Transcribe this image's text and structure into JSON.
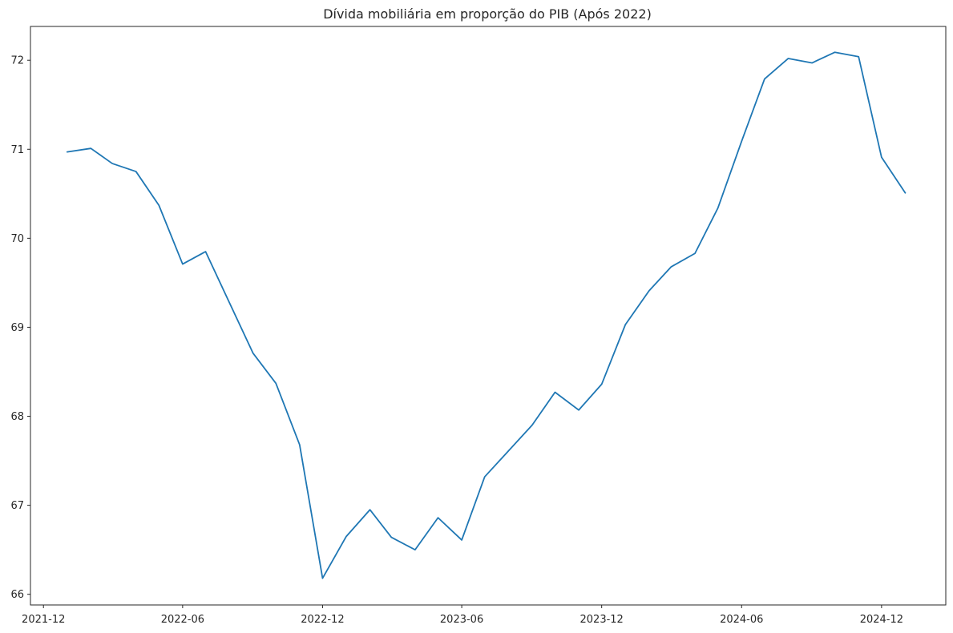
{
  "chart_data": {
    "type": "line",
    "title": "Dívida mobiliária em proporção do PIB (Após 2022)",
    "xlabel": "",
    "ylabel": "",
    "grid": false,
    "legend": "none",
    "x_range": [
      "2021-11-14",
      "2025-02-23"
    ],
    "ylim": [
      65.88,
      72.38
    ],
    "x_ticks": [
      {
        "value": "2021-12-01",
        "label": "2021-12"
      },
      {
        "value": "2022-06-01",
        "label": "2022-06"
      },
      {
        "value": "2022-12-01",
        "label": "2022-12"
      },
      {
        "value": "2023-06-01",
        "label": "2023-06"
      },
      {
        "value": "2023-12-01",
        "label": "2023-12"
      },
      {
        "value": "2024-06-01",
        "label": "2024-06"
      },
      {
        "value": "2024-12-01",
        "label": "2024-12"
      }
    ],
    "y_ticks": [
      66,
      67,
      68,
      69,
      70,
      71,
      72
    ],
    "colors": {
      "line": "#1f77b4",
      "axes": "#262626",
      "background": "#ffffff"
    },
    "series": [
      {
        "x": [
          "2022-01-01",
          "2022-02-01",
          "2022-03-01",
          "2022-04-01",
          "2022-05-01",
          "2022-06-01",
          "2022-07-01",
          "2022-08-01",
          "2022-09-01",
          "2022-10-01",
          "2022-11-01",
          "2022-12-01",
          "2023-01-01",
          "2023-02-01",
          "2023-03-01",
          "2023-04-01",
          "2023-05-01",
          "2023-06-01",
          "2023-07-01",
          "2023-08-01",
          "2023-09-01",
          "2023-10-01",
          "2023-11-01",
          "2023-12-01",
          "2024-01-01",
          "2024-02-01",
          "2024-03-01",
          "2024-04-01",
          "2024-05-01",
          "2024-06-01",
          "2024-07-01",
          "2024-08-01",
          "2024-09-01",
          "2024-10-01",
          "2024-11-01",
          "2024-12-01",
          "2025-01-01"
        ],
        "values": [
          70.97,
          71.01,
          70.84,
          70.75,
          70.37,
          69.71,
          69.85,
          69.28,
          68.71,
          68.37,
          67.68,
          66.18,
          66.65,
          66.95,
          66.64,
          66.5,
          66.86,
          66.61,
          67.32,
          67.61,
          67.9,
          68.27,
          68.07,
          68.36,
          69.03,
          69.41,
          69.68,
          69.83,
          70.34,
          71.09,
          71.79,
          72.02,
          71.97,
          72.09,
          72.04,
          70.91,
          70.51
        ]
      }
    ]
  }
}
